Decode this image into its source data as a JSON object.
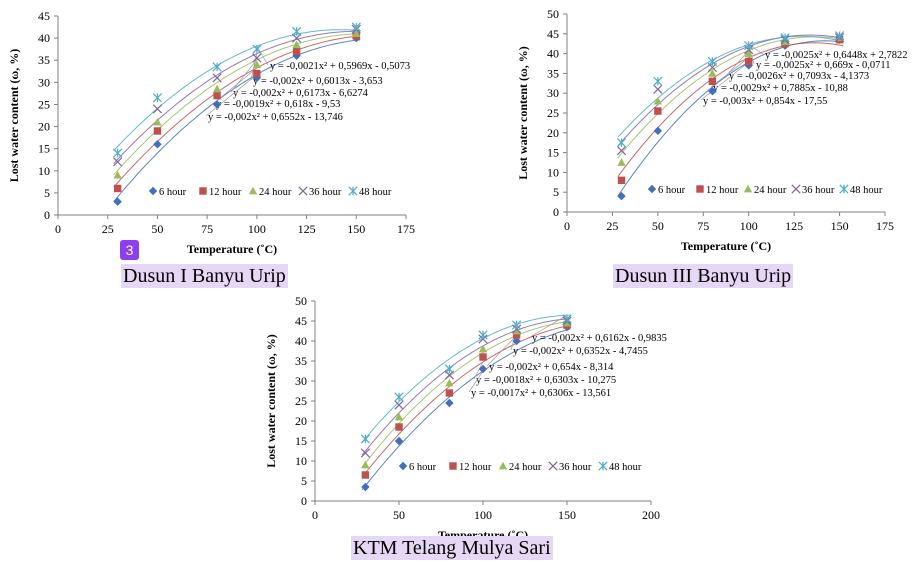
{
  "badge_number": "3",
  "colors": {
    "6 hour": "#3f6fbf",
    "12 hour": "#c0504d",
    "24 hour": "#9bbb59",
    "36 hour": "#8064a2",
    "48 hour": "#4bacc6"
  },
  "chart_data": [
    {
      "type": "scatter",
      "caption": "Dusun I Banyu Urip",
      "xlabel": "Temperature (˚C)",
      "ylabel": "Lost water content (ω, %)",
      "xlim": [
        0,
        175
      ],
      "ylim": [
        0,
        45
      ],
      "xticks": [
        0,
        25,
        50,
        75,
        100,
        125,
        150,
        175
      ],
      "yticks": [
        0,
        5,
        10,
        15,
        20,
        25,
        30,
        35,
        40,
        45
      ],
      "grid": false,
      "legend": "inside-bottom",
      "series": [
        {
          "name": "6 hour",
          "marker": "diamond",
          "x": [
            30,
            50,
            80,
            100,
            120,
            150
          ],
          "y": [
            3,
            16,
            25,
            31,
            36,
            40
          ],
          "trend": [
            -0.002,
            0.6552,
            -13.746
          ]
        },
        {
          "name": "12 hour",
          "marker": "square",
          "x": [
            30,
            50,
            80,
            100,
            120,
            150
          ],
          "y": [
            6,
            19,
            27,
            32,
            37,
            40.5
          ],
          "trend": [
            -0.0019,
            0.618,
            -9.53
          ]
        },
        {
          "name": "24 hour",
          "marker": "triangle",
          "x": [
            30,
            50,
            80,
            100,
            120,
            150
          ],
          "y": [
            9,
            21,
            28.5,
            34,
            38.5,
            41
          ],
          "trend": [
            -0.002,
            0.6173,
            -6.6274
          ]
        },
        {
          "name": "36 hour",
          "marker": "x",
          "x": [
            30,
            50,
            80,
            100,
            120,
            150
          ],
          "y": [
            12,
            24,
            31,
            35.5,
            40,
            42
          ],
          "trend": [
            -0.002,
            0.6013,
            -3.653
          ]
        },
        {
          "name": "48 hour",
          "marker": "star",
          "x": [
            30,
            50,
            80,
            100,
            120,
            150
          ],
          "y": [
            14,
            26.5,
            33.5,
            37.5,
            41.5,
            42.5
          ],
          "trend": [
            -0.0021,
            0.5969,
            -0.5073
          ]
        }
      ],
      "equations": [
        "y = -0,0021x² + 0,5969x - 0,5073",
        "y = -0,002x² + 0,6013x - 3,653",
        "y = -0,002x² + 0,6173x - 6,6274",
        "y = -0,0019x² + 0,618x - 9,53",
        "y = -0,002x² + 0,6552x - 13,746"
      ]
    },
    {
      "type": "scatter",
      "caption": "Dusun III Banyu Urip",
      "xlabel": "Temperature (˚C)",
      "ylabel": "Lost water content (ω, %)",
      "xlim": [
        0,
        175
      ],
      "ylim": [
        0,
        50
      ],
      "xticks": [
        0,
        25,
        50,
        75,
        100,
        125,
        150,
        175
      ],
      "yticks": [
        0,
        5,
        10,
        15,
        20,
        25,
        30,
        35,
        40,
        45,
        50
      ],
      "grid": false,
      "legend": "inside-bottom",
      "series": [
        {
          "name": "6 hour",
          "marker": "diamond",
          "x": [
            30,
            50,
            80,
            100,
            120,
            150
          ],
          "y": [
            4,
            20.5,
            30.5,
            37,
            42,
            43.5
          ],
          "trend": [
            -0.003,
            0.854,
            -17.55
          ]
        },
        {
          "name": "12 hour",
          "marker": "square",
          "x": [
            30,
            50,
            80,
            100,
            120,
            150
          ],
          "y": [
            8,
            25.5,
            33,
            38,
            42.5,
            43.5
          ],
          "trend": [
            -0.0029,
            0.7885,
            -10.88
          ]
        },
        {
          "name": "24 hour",
          "marker": "triangle",
          "x": [
            30,
            50,
            80,
            100,
            120,
            150
          ],
          "y": [
            12.5,
            28,
            35,
            40,
            43,
            44
          ],
          "trend": [
            -0.0026,
            0.7093,
            -4.1373
          ]
        },
        {
          "name": "36 hour",
          "marker": "x",
          "x": [
            30,
            50,
            80,
            100,
            120,
            150
          ],
          "y": [
            15.5,
            31,
            36.5,
            41,
            43.5,
            44
          ],
          "trend": [
            -0.0025,
            0.669,
            -0.0711
          ]
        },
        {
          "name": "48 hour",
          "marker": "star",
          "x": [
            30,
            50,
            80,
            100,
            120,
            150
          ],
          "y": [
            17.5,
            33,
            38,
            42,
            44,
            44.5
          ],
          "trend": [
            -0.0025,
            0.6448,
            2.7822
          ]
        }
      ],
      "equations": [
        "y = -0,0025x² + 0,6448x + 2,7822",
        "y = -0,0025x² + 0,669x - 0,0711",
        "y = -0,0026x² + 0,7093x - 4,1373",
        "y = -0,0029x² + 0,7885x - 10,88",
        "y = -0,003x² + 0,854x - 17,55"
      ]
    },
    {
      "type": "scatter",
      "caption": "KTM Telang Mulya Sari",
      "xlabel": "Temperature (˚C)",
      "ylabel": "Lost water content (ω, %)",
      "xlim": [
        0,
        200
      ],
      "ylim": [
        0,
        50
      ],
      "xticks": [
        0,
        50,
        100,
        150,
        200
      ],
      "yticks": [
        0,
        5,
        10,
        15,
        20,
        25,
        30,
        35,
        40,
        45,
        50
      ],
      "grid": false,
      "legend": "inside-bottom",
      "series": [
        {
          "name": "6 hour",
          "marker": "diamond",
          "x": [
            30,
            50,
            80,
            100,
            120,
            150
          ],
          "y": [
            3.5,
            15,
            24.5,
            33,
            40,
            43.5
          ],
          "trend": [
            -0.0017,
            0.6306,
            -13.561
          ]
        },
        {
          "name": "12 hour",
          "marker": "square",
          "x": [
            30,
            50,
            80,
            100,
            120,
            150
          ],
          "y": [
            6.5,
            18.5,
            27,
            36,
            41.5,
            44
          ],
          "trend": [
            -0.0018,
            0.6303,
            -10.275
          ]
        },
        {
          "name": "24 hour",
          "marker": "triangle",
          "x": [
            30,
            50,
            80,
            100,
            120,
            150
          ],
          "y": [
            9,
            21,
            29.5,
            38,
            42.5,
            44.5
          ],
          "trend": [
            -0.002,
            0.654,
            -8.314
          ]
        },
        {
          "name": "36 hour",
          "marker": "x",
          "x": [
            30,
            50,
            80,
            100,
            120,
            150
          ],
          "y": [
            12,
            24,
            31.5,
            40.5,
            43,
            45
          ],
          "trend": [
            -0.002,
            0.6352,
            -4.7455
          ]
        },
        {
          "name": "48 hour",
          "marker": "star",
          "x": [
            30,
            50,
            80,
            100,
            120,
            150
          ],
          "y": [
            15.5,
            26,
            33,
            41.5,
            44,
            45.5
          ],
          "trend": [
            -0.002,
            0.6162,
            -0.9835
          ]
        }
      ],
      "equations": [
        "y = -0,002x² + 0,6162x - 0,9835",
        "y = -0,002x² + 0,6352x - 4,7455",
        "y = -0,002x² + 0,654x - 8,314",
        "y = -0,0018x² + 0,6303x - 10,275",
        "y = -0,0017x² + 0,6306x - 13,561"
      ]
    }
  ]
}
